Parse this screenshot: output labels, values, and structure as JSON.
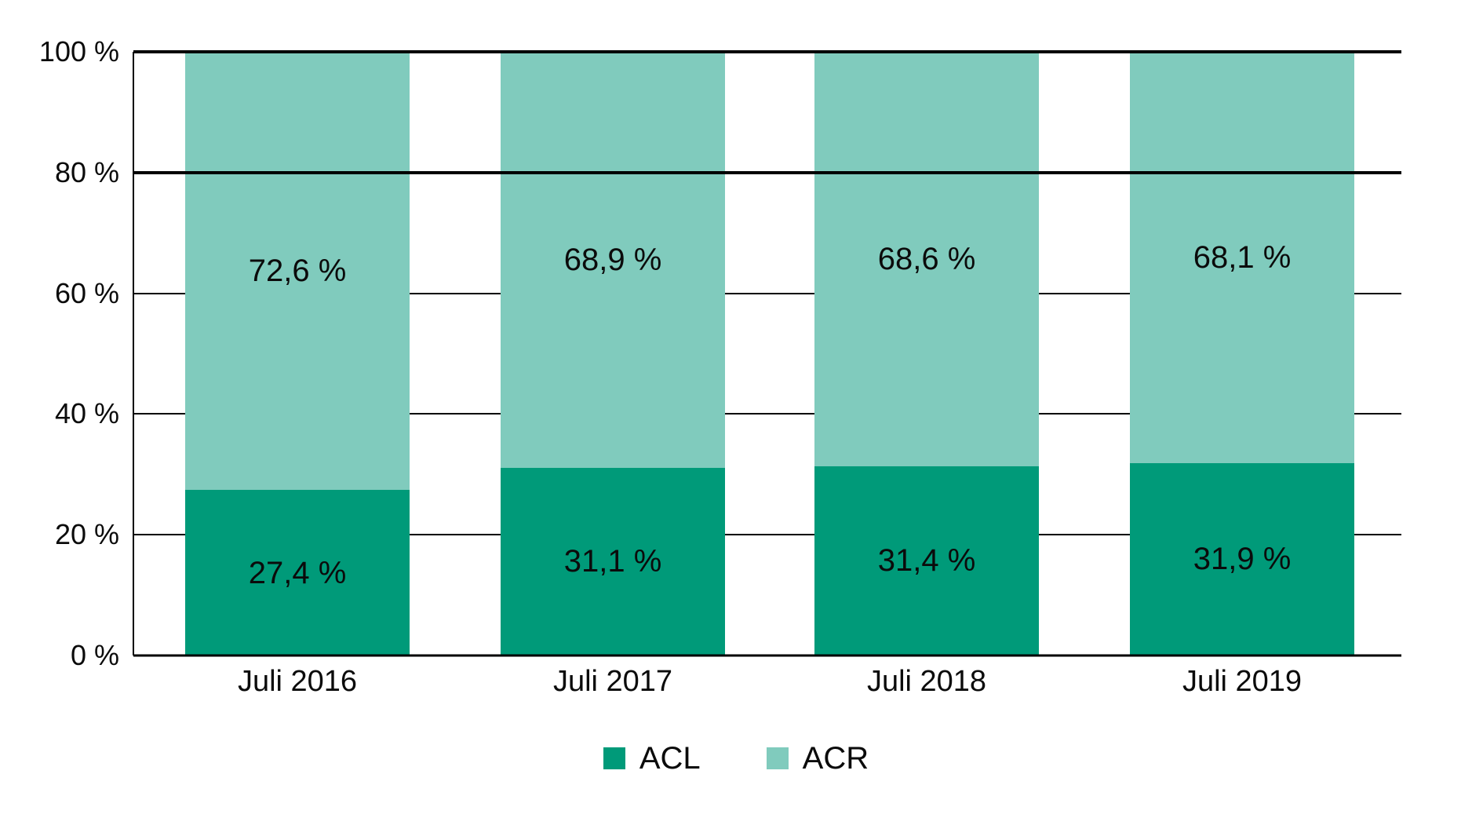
{
  "chart_data": {
    "type": "bar",
    "stacked": true,
    "title": "",
    "xlabel": "",
    "ylabel": "",
    "categories": [
      "Juli 2016",
      "Juli 2017",
      "Juli 2018",
      "Juli 2019"
    ],
    "series": [
      {
        "name": "ACL",
        "color": "#009A79",
        "values": [
          27.4,
          31.1,
          31.4,
          31.9
        ],
        "labels": [
          "27,4 %",
          "31,1 %",
          "31,4 %",
          "31,9 %"
        ]
      },
      {
        "name": "ACR",
        "color": "#80CBBD",
        "values": [
          72.6,
          68.9,
          68.6,
          68.1
        ],
        "labels": [
          "72,6 %",
          "68,9 %",
          "68,6 %",
          "68,1 %"
        ]
      }
    ],
    "ylim": [
      0,
      100
    ],
    "yticks": [
      {
        "value": 0,
        "label": "0 %",
        "emphasized": false
      },
      {
        "value": 20,
        "label": "20 %",
        "emphasized": false
      },
      {
        "value": 40,
        "label": "40 %",
        "emphasized": false
      },
      {
        "value": 60,
        "label": "60 %",
        "emphasized": false
      },
      {
        "value": 80,
        "label": "80 %",
        "emphasized": true
      },
      {
        "value": 100,
        "label": "100 %",
        "emphasized": true
      }
    ],
    "grid": true,
    "legend": {
      "position": "bottom",
      "entries": [
        "ACL",
        "ACR"
      ]
    },
    "colors": {
      "background": "#FFFFFF",
      "axis": "#000000",
      "text": "#0B0B0B"
    }
  }
}
